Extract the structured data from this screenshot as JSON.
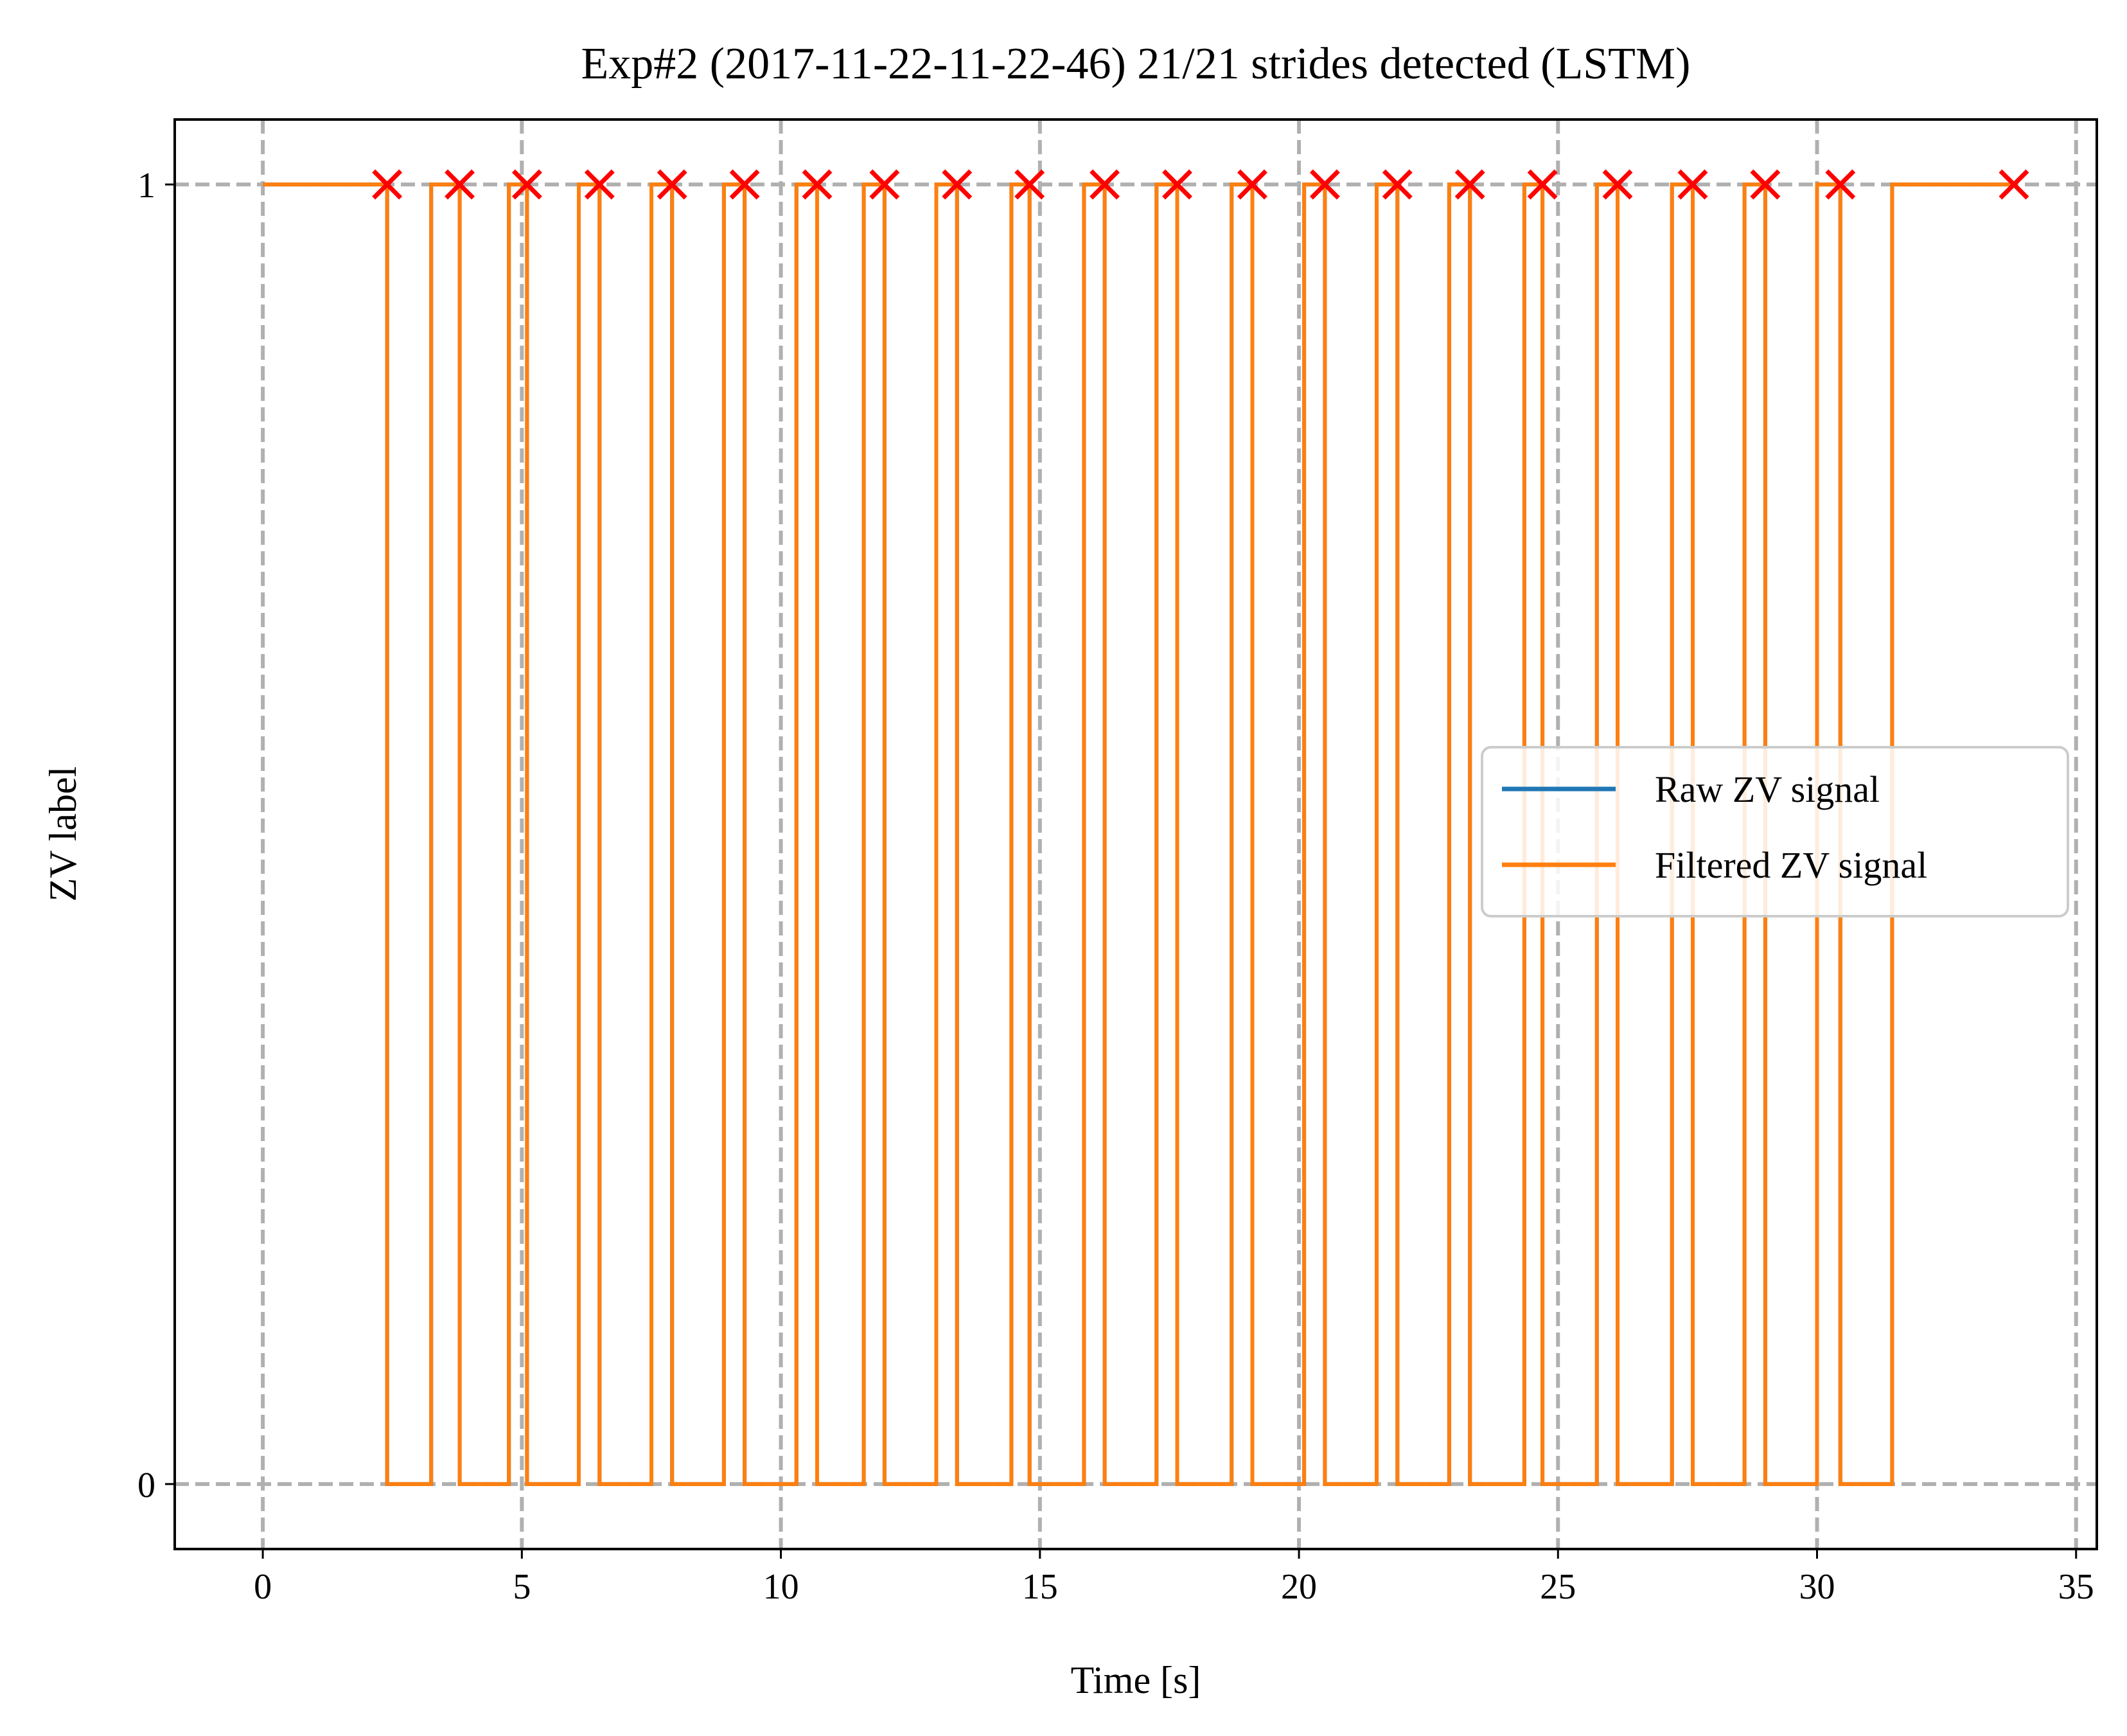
{
  "chart_data": {
    "type": "line",
    "title": "Exp#2 (2017-11-22-11-22-46) 21/21 strides detected (LSTM)",
    "xlabel": "Time [s]",
    "ylabel": "ZV label",
    "xlim": [
      -1.7,
      35.4
    ],
    "ylim": [
      -0.05,
      1.05
    ],
    "xticks": [
      0,
      5,
      10,
      15,
      20,
      25,
      30,
      35
    ],
    "xtick_labels": [
      "0",
      "5",
      "10",
      "15",
      "20",
      "25",
      "30",
      "35"
    ],
    "yticks": [
      0,
      1
    ],
    "ytick_labels": [
      "0",
      "1"
    ],
    "grid": true,
    "legend_position": "center-right",
    "series": [
      {
        "name": "Raw ZV signal",
        "color": "#1f77b4",
        "style": "step",
        "x": [
          0,
          2.4,
          2.4,
          3.25,
          3.25,
          3.8,
          3.8,
          4.75,
          4.75,
          5.1,
          5.1,
          6.1,
          6.1,
          6.5,
          6.5,
          7.5,
          7.5,
          7.9,
          7.9,
          8.9,
          8.9,
          9.3,
          9.3,
          10.3,
          10.3,
          10.7,
          10.7,
          11.6,
          11.6,
          12.0,
          12.0,
          13.0,
          13.0,
          13.4,
          13.4,
          14.45,
          14.45,
          14.8,
          14.8,
          15.85,
          15.85,
          16.25,
          16.25,
          17.25,
          17.25,
          17.65,
          17.65,
          18.7,
          18.7,
          19.1,
          19.1,
          20.1,
          20.1,
          20.5,
          20.5,
          21.5,
          21.5,
          21.9,
          21.9,
          22.9,
          22.9,
          23.3,
          23.3,
          24.35,
          24.35,
          24.7,
          24.7,
          25.75,
          25.75,
          26.15,
          26.15,
          27.2,
          27.2,
          27.6,
          27.6,
          28.6,
          28.6,
          29.0,
          29.0,
          30.0,
          30.0,
          30.45,
          30.45,
          31.45,
          31.45,
          33.8
        ],
        "y": [
          1,
          1,
          0,
          0,
          1,
          1,
          0,
          0,
          1,
          1,
          0,
          0,
          1,
          1,
          0,
          0,
          1,
          1,
          0,
          0,
          1,
          1,
          0,
          0,
          1,
          1,
          0,
          0,
          1,
          1,
          0,
          0,
          1,
          1,
          0,
          0,
          1,
          1,
          0,
          0,
          1,
          1,
          0,
          0,
          1,
          1,
          0,
          0,
          1,
          1,
          0,
          0,
          1,
          1,
          0,
          0,
          1,
          1,
          0,
          0,
          1,
          1,
          0,
          0,
          1,
          1,
          0,
          0,
          1,
          1,
          0,
          0,
          1,
          1,
          0,
          0,
          1,
          1,
          0,
          0,
          1,
          1,
          0,
          0,
          1,
          1
        ]
      },
      {
        "name": "Filtered ZV signal",
        "color": "#ff7f0e",
        "style": "step",
        "x": [
          0,
          2.4,
          2.4,
          3.25,
          3.25,
          3.8,
          3.8,
          4.75,
          4.75,
          5.1,
          5.1,
          6.1,
          6.1,
          6.5,
          6.5,
          7.5,
          7.5,
          7.9,
          7.9,
          8.9,
          8.9,
          9.3,
          9.3,
          10.3,
          10.3,
          10.7,
          10.7,
          11.6,
          11.6,
          12.0,
          12.0,
          13.0,
          13.0,
          13.4,
          13.4,
          14.45,
          14.45,
          14.8,
          14.8,
          15.85,
          15.85,
          16.25,
          16.25,
          17.25,
          17.25,
          17.65,
          17.65,
          18.7,
          18.7,
          19.1,
          19.1,
          20.1,
          20.1,
          20.5,
          20.5,
          21.5,
          21.5,
          21.9,
          21.9,
          22.9,
          22.9,
          23.3,
          23.3,
          24.35,
          24.35,
          24.7,
          24.7,
          25.75,
          25.75,
          26.15,
          26.15,
          27.2,
          27.2,
          27.6,
          27.6,
          28.6,
          28.6,
          29.0,
          29.0,
          30.0,
          30.0,
          30.45,
          30.45,
          31.45,
          31.45,
          33.8
        ],
        "y": [
          1,
          1,
          0,
          0,
          1,
          1,
          0,
          0,
          1,
          1,
          0,
          0,
          1,
          1,
          0,
          0,
          1,
          1,
          0,
          0,
          1,
          1,
          0,
          0,
          1,
          1,
          0,
          0,
          1,
          1,
          0,
          0,
          1,
          1,
          0,
          0,
          1,
          1,
          0,
          0,
          1,
          1,
          0,
          0,
          1,
          1,
          0,
          0,
          1,
          1,
          0,
          0,
          1,
          1,
          0,
          0,
          1,
          1,
          0,
          0,
          1,
          1,
          0,
          0,
          1,
          1,
          0,
          0,
          1,
          1,
          0,
          0,
          1,
          1,
          0,
          0,
          1,
          1,
          0,
          0,
          1,
          1,
          0,
          0,
          1,
          1
        ]
      },
      {
        "role": "stride-markers",
        "type": "scatter",
        "marker": "x",
        "color": "#ff0000",
        "x": [
          2.4,
          3.8,
          5.1,
          6.5,
          7.9,
          9.3,
          10.7,
          12.0,
          13.4,
          14.8,
          16.25,
          17.65,
          19.1,
          20.5,
          21.9,
          23.3,
          24.7,
          26.15,
          27.6,
          29.0,
          30.45,
          33.8
        ],
        "y": [
          1,
          1,
          1,
          1,
          1,
          1,
          1,
          1,
          1,
          1,
          1,
          1,
          1,
          1,
          1,
          1,
          1,
          1,
          1,
          1,
          1,
          1
        ]
      }
    ]
  }
}
